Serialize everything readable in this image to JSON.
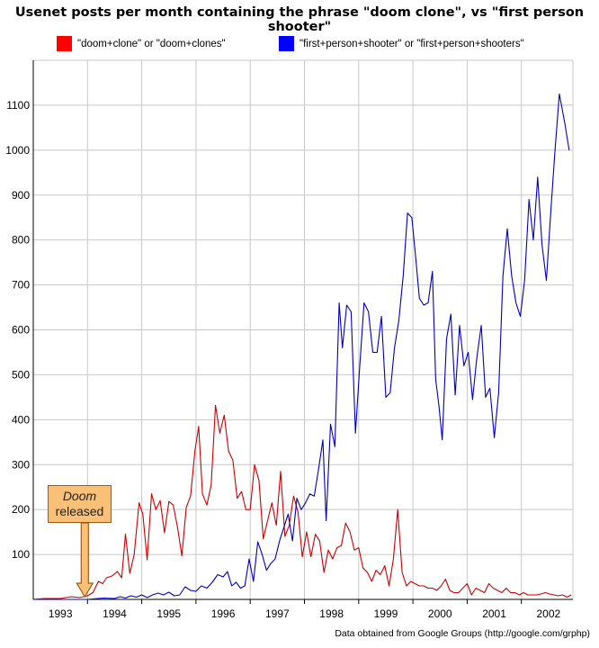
{
  "colors": {
    "doom": "#cc0000",
    "fps": "#0000bb",
    "legend_doom": "#ff0000",
    "legend_fps": "#0000ff",
    "grid": "#c8c8c8",
    "callout_fill": "#f9c177",
    "callout_border": "#a05a14"
  },
  "annotation": {
    "line1": "Doom",
    "line2": "released",
    "x": 1993.45
  },
  "credit": "Data obtained from Google Groups (http://google.com/grphp)",
  "chart_data": {
    "type": "line",
    "title": "Usenet posts per month containing the phrase \"doom clone\", vs \"first person shooter\"",
    "xlabel": "",
    "ylabel": "",
    "xlim": [
      1992.5,
      2002.45
    ],
    "ylim": [
      0,
      1200
    ],
    "x_ticks": [
      "1993",
      "1994",
      "1995",
      "1996",
      "1997",
      "1998",
      "1999",
      "2000",
      "2001",
      "2002"
    ],
    "y_ticks": [
      "100",
      "200",
      "300",
      "400",
      "500",
      "600",
      "700",
      "800",
      "900",
      "1000",
      "1100"
    ],
    "grid": true,
    "legend": "top",
    "series": [
      {
        "name": "\"doom+clone\" or \"doom+clones\"",
        "points": [
          [
            1992.5,
            0
          ],
          [
            1992.7,
            2
          ],
          [
            1993.0,
            2
          ],
          [
            1993.2,
            6
          ],
          [
            1993.35,
            4
          ],
          [
            1993.5,
            8
          ],
          [
            1993.6,
            15
          ],
          [
            1993.7,
            40
          ],
          [
            1993.78,
            35
          ],
          [
            1993.85,
            48
          ],
          [
            1993.95,
            52
          ],
          [
            1994.05,
            62
          ],
          [
            1994.13,
            48
          ],
          [
            1994.2,
            145
          ],
          [
            1994.28,
            58
          ],
          [
            1994.36,
            100
          ],
          [
            1994.45,
            215
          ],
          [
            1994.52,
            190
          ],
          [
            1994.6,
            88
          ],
          [
            1994.68,
            235
          ],
          [
            1994.76,
            200
          ],
          [
            1994.84,
            220
          ],
          [
            1994.92,
            148
          ],
          [
            1995.0,
            218
          ],
          [
            1995.08,
            210
          ],
          [
            1995.16,
            160
          ],
          [
            1995.24,
            97
          ],
          [
            1995.32,
            205
          ],
          [
            1995.4,
            230
          ],
          [
            1995.48,
            330
          ],
          [
            1995.55,
            385
          ],
          [
            1995.62,
            235
          ],
          [
            1995.7,
            210
          ],
          [
            1995.78,
            255
          ],
          [
            1995.86,
            432
          ],
          [
            1995.94,
            370
          ],
          [
            1996.02,
            410
          ],
          [
            1996.1,
            330
          ],
          [
            1996.18,
            310
          ],
          [
            1996.26,
            225
          ],
          [
            1996.34,
            240
          ],
          [
            1996.42,
            200
          ],
          [
            1996.5,
            200
          ],
          [
            1996.58,
            300
          ],
          [
            1996.66,
            265
          ],
          [
            1996.74,
            135
          ],
          [
            1996.82,
            175
          ],
          [
            1996.9,
            215
          ],
          [
            1996.98,
            165
          ],
          [
            1997.06,
            285
          ],
          [
            1997.14,
            140
          ],
          [
            1997.22,
            165
          ],
          [
            1997.3,
            230
          ],
          [
            1997.38,
            195
          ],
          [
            1997.46,
            95
          ],
          [
            1997.54,
            150
          ],
          [
            1997.62,
            95
          ],
          [
            1997.7,
            145
          ],
          [
            1997.78,
            130
          ],
          [
            1997.86,
            60
          ],
          [
            1997.94,
            110
          ],
          [
            1998.02,
            90
          ],
          [
            1998.1,
            115
          ],
          [
            1998.18,
            120
          ],
          [
            1998.26,
            170
          ],
          [
            1998.34,
            150
          ],
          [
            1998.42,
            110
          ],
          [
            1998.5,
            115
          ],
          [
            1998.58,
            70
          ],
          [
            1998.66,
            60
          ],
          [
            1998.74,
            40
          ],
          [
            1998.82,
            65
          ],
          [
            1998.9,
            55
          ],
          [
            1998.98,
            75
          ],
          [
            1999.06,
            30
          ],
          [
            1999.14,
            90
          ],
          [
            1999.22,
            200
          ],
          [
            1999.3,
            60
          ],
          [
            1999.38,
            30
          ],
          [
            1999.46,
            40
          ],
          [
            1999.54,
            35
          ],
          [
            1999.62,
            30
          ],
          [
            1999.7,
            30
          ],
          [
            1999.78,
            25
          ],
          [
            1999.86,
            25
          ],
          [
            1999.94,
            20
          ],
          [
            2000.02,
            30
          ],
          [
            2000.1,
            45
          ],
          [
            2000.18,
            20
          ],
          [
            2000.26,
            15
          ],
          [
            2000.34,
            15
          ],
          [
            2000.42,
            25
          ],
          [
            2000.5,
            35
          ],
          [
            2000.58,
            10
          ],
          [
            2000.66,
            25
          ],
          [
            2000.74,
            20
          ],
          [
            2000.82,
            15
          ],
          [
            2000.9,
            35
          ],
          [
            2000.98,
            25
          ],
          [
            2001.06,
            20
          ],
          [
            2001.14,
            15
          ],
          [
            2001.22,
            25
          ],
          [
            2001.3,
            15
          ],
          [
            2001.38,
            15
          ],
          [
            2001.46,
            10
          ],
          [
            2001.54,
            15
          ],
          [
            2001.62,
            10
          ],
          [
            2001.7,
            10
          ],
          [
            2001.78,
            10
          ],
          [
            2001.86,
            12
          ],
          [
            2001.94,
            15
          ],
          [
            2002.02,
            12
          ],
          [
            2002.1,
            10
          ],
          [
            2002.18,
            8
          ],
          [
            2002.26,
            10
          ],
          [
            2002.34,
            5
          ],
          [
            2002.42,
            10
          ]
        ]
      },
      {
        "name": "\"first+person+shooter\" or \"first+person+shooters\"",
        "points": [
          [
            1992.5,
            0
          ],
          [
            1993.0,
            0
          ],
          [
            1993.5,
            0
          ],
          [
            1993.8,
            3
          ],
          [
            1994.0,
            2
          ],
          [
            1994.1,
            6
          ],
          [
            1994.2,
            3
          ],
          [
            1994.3,
            8
          ],
          [
            1994.4,
            5
          ],
          [
            1994.5,
            10
          ],
          [
            1994.6,
            4
          ],
          [
            1994.7,
            10
          ],
          [
            1994.8,
            14
          ],
          [
            1994.9,
            10
          ],
          [
            1995.0,
            16
          ],
          [
            1995.1,
            8
          ],
          [
            1995.2,
            10
          ],
          [
            1995.3,
            28
          ],
          [
            1995.4,
            20
          ],
          [
            1995.5,
            18
          ],
          [
            1995.6,
            30
          ],
          [
            1995.7,
            25
          ],
          [
            1995.8,
            38
          ],
          [
            1995.9,
            55
          ],
          [
            1996.0,
            50
          ],
          [
            1996.08,
            62
          ],
          [
            1996.16,
            30
          ],
          [
            1996.24,
            38
          ],
          [
            1996.32,
            25
          ],
          [
            1996.4,
            30
          ],
          [
            1996.48,
            90
          ],
          [
            1996.56,
            40
          ],
          [
            1996.64,
            128
          ],
          [
            1996.72,
            100
          ],
          [
            1996.8,
            65
          ],
          [
            1996.88,
            80
          ],
          [
            1996.96,
            90
          ],
          [
            1997.04,
            130
          ],
          [
            1997.12,
            160
          ],
          [
            1997.2,
            190
          ],
          [
            1997.28,
            130
          ],
          [
            1997.36,
            225
          ],
          [
            1997.44,
            200
          ],
          [
            1997.52,
            215
          ],
          [
            1997.6,
            235
          ],
          [
            1997.68,
            230
          ],
          [
            1997.76,
            290
          ],
          [
            1997.84,
            355
          ],
          [
            1997.9,
            175
          ],
          [
            1997.98,
            390
          ],
          [
            1998.06,
            340
          ],
          [
            1998.14,
            660
          ],
          [
            1998.2,
            560
          ],
          [
            1998.28,
            655
          ],
          [
            1998.36,
            640
          ],
          [
            1998.44,
            370
          ],
          [
            1998.52,
            520
          ],
          [
            1998.6,
            660
          ],
          [
            1998.68,
            640
          ],
          [
            1998.76,
            550
          ],
          [
            1998.84,
            550
          ],
          [
            1998.92,
            630
          ],
          [
            1999.0,
            450
          ],
          [
            1999.08,
            460
          ],
          [
            1999.16,
            560
          ],
          [
            1999.24,
            620
          ],
          [
            1999.32,
            720
          ],
          [
            1999.4,
            860
          ],
          [
            1999.48,
            850
          ],
          [
            1999.56,
            750
          ],
          [
            1999.62,
            670
          ],
          [
            1999.7,
            655
          ],
          [
            1999.78,
            660
          ],
          [
            1999.86,
            730
          ],
          [
            1999.92,
            490
          ],
          [
            1999.98,
            430
          ],
          [
            2000.04,
            355
          ],
          [
            2000.12,
            580
          ],
          [
            2000.2,
            635
          ],
          [
            2000.28,
            455
          ],
          [
            2000.36,
            610
          ],
          [
            2000.44,
            520
          ],
          [
            2000.52,
            550
          ],
          [
            2000.6,
            445
          ],
          [
            2000.68,
            540
          ],
          [
            2000.76,
            610
          ],
          [
            2000.84,
            450
          ],
          [
            2000.92,
            470
          ],
          [
            2001.0,
            360
          ],
          [
            2001.08,
            460
          ],
          [
            2001.16,
            720
          ],
          [
            2001.24,
            825
          ],
          [
            2001.32,
            720
          ],
          [
            2001.4,
            660
          ],
          [
            2001.48,
            630
          ],
          [
            2001.56,
            710
          ],
          [
            2001.64,
            890
          ],
          [
            2001.72,
            800
          ],
          [
            2001.8,
            940
          ],
          [
            2001.88,
            790
          ],
          [
            2001.96,
            710
          ],
          [
            2002.04,
            860
          ],
          [
            2002.12,
            1000
          ],
          [
            2002.2,
            1125
          ],
          [
            2002.3,
            1060
          ],
          [
            2002.38,
            1000
          ]
        ]
      }
    ]
  }
}
